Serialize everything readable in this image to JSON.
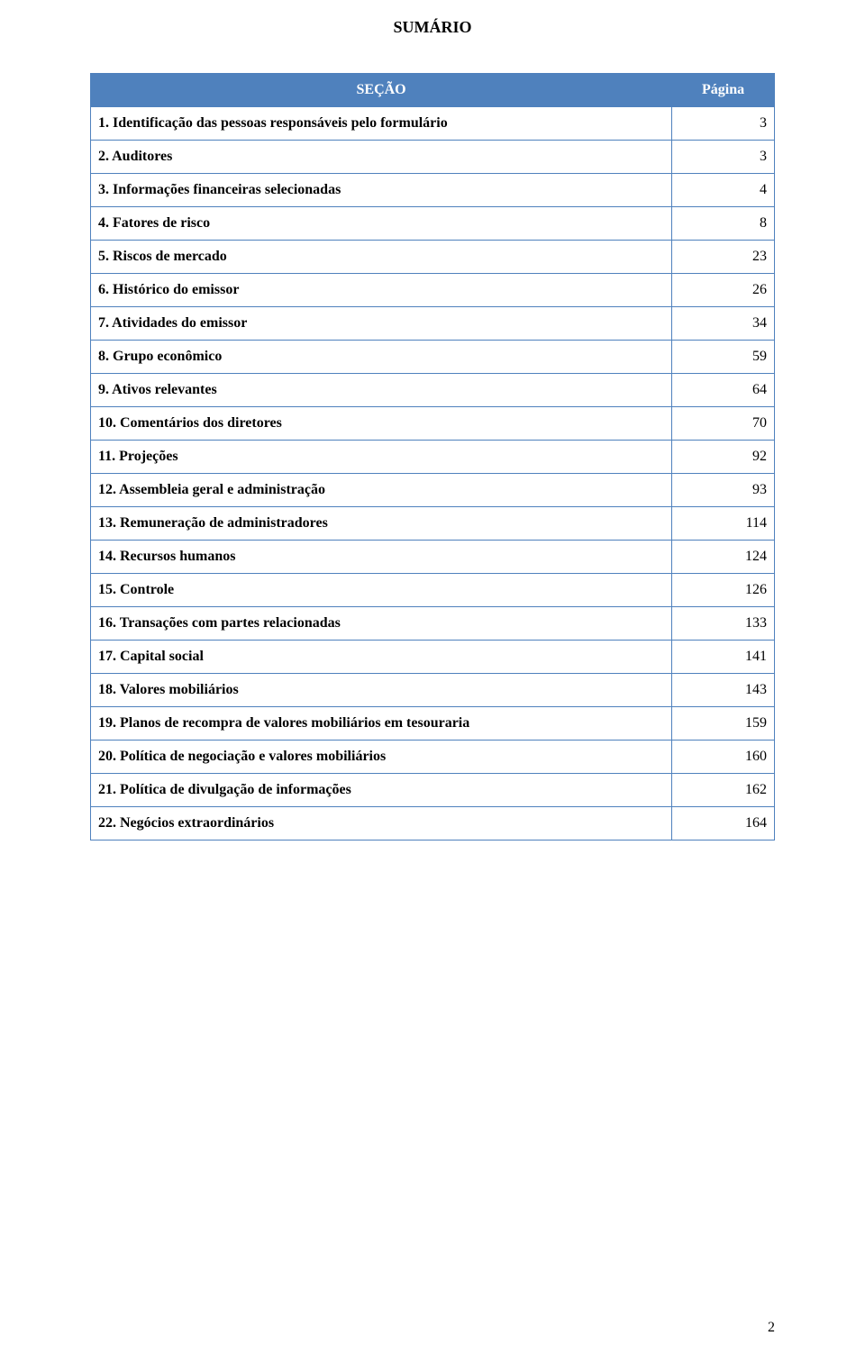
{
  "title": "SUMÁRIO",
  "colors": {
    "border": "#4f81bd",
    "header_bg": "#4f81bd",
    "header_fg": "#ffffff",
    "text": "#000000",
    "background": "#ffffff"
  },
  "typography": {
    "family": "Times New Roman",
    "title_size_pt": 14,
    "cell_size_pt": 12,
    "title_weight": "bold",
    "label_weight": "bold"
  },
  "table": {
    "columns": [
      {
        "key": "secao",
        "label": "SEÇÃO",
        "width_pct": 85,
        "align": "center"
      },
      {
        "key": "pagina",
        "label": "Página",
        "width_pct": 15,
        "align": "center"
      }
    ],
    "rows": [
      {
        "label": "1.  Identificação das pessoas responsáveis pelo formulário",
        "page": "3"
      },
      {
        "label": "2.  Auditores",
        "page": "3"
      },
      {
        "label": "3.  Informações financeiras selecionadas",
        "page": "4"
      },
      {
        "label": "4.  Fatores de risco",
        "page": "8"
      },
      {
        "label": "5.  Riscos de mercado",
        "page": "23"
      },
      {
        "label": "6.  Histórico do emissor",
        "page": "26"
      },
      {
        "label": "7.  Atividades do emissor",
        "page": "34"
      },
      {
        "label": "8.  Grupo econômico",
        "page": "59"
      },
      {
        "label": "9.  Ativos relevantes",
        "page": "64"
      },
      {
        "label": "10. Comentários dos diretores",
        "page": "70"
      },
      {
        "label": "11. Projeções",
        "page": "92"
      },
      {
        "label": "12. Assembleia geral e administração",
        "page": "93"
      },
      {
        "label": "13. Remuneração de administradores",
        "page": "114"
      },
      {
        "label": "14. Recursos humanos",
        "page": "124"
      },
      {
        "label": "15. Controle",
        "page": "126"
      },
      {
        "label": "16. Transações com partes relacionadas",
        "page": "133"
      },
      {
        "label": "17. Capital social",
        "page": "141"
      },
      {
        "label": "18. Valores mobiliários",
        "page": "143"
      },
      {
        "label": "19. Planos de recompra de valores mobiliários em tesouraria",
        "page": "159"
      },
      {
        "label": "20.  Política de negociação e valores mobiliários",
        "page": "160"
      },
      {
        "label": "21. Política de divulgação de informações",
        "page": "162"
      },
      {
        "label": "22. Negócios extraordinários",
        "page": "164"
      }
    ]
  },
  "page_number": "2"
}
